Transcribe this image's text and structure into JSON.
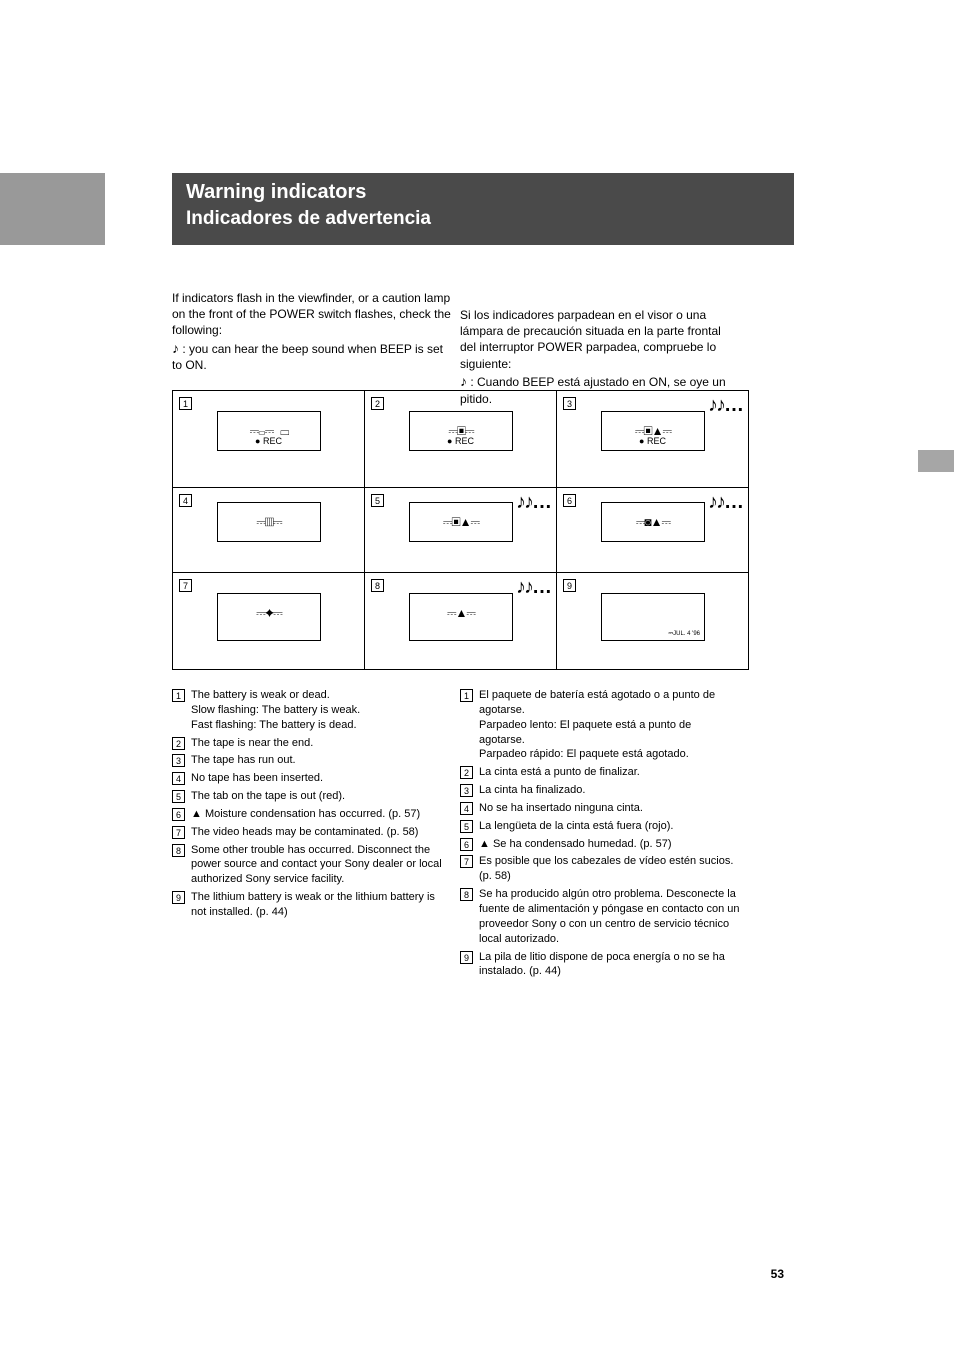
{
  "page_number": "53",
  "heading": {
    "line1": "Warning indicators",
    "line2": "Indicadores de advertencia"
  },
  "intro": {
    "en_pre": "If indicators flash in the viewfinder, or a caution lamp on the front of the POWER switch flashes, check the following:",
    "en_music": ": you can hear the beep sound when BEEP is set to ON.",
    "es_pre": "Si los indicadores parpadean en el visor o una lámpara de precaución situada en la parte frontal del interruptor POWER parpadea, compruebe lo siguiente:",
    "es_music": ": Cuando BEEP está ajustado en ON, se oye un pitido."
  },
  "cell_nums": [
    "1",
    "2",
    "3",
    "4",
    "5",
    "6",
    "7",
    "8",
    "9"
  ],
  "rec_symbol": "● REC",
  "music_glyph": "♪♪…",
  "date_stamp": "JUL. 4 '96",
  "legend_en": [
    {
      "n": "1",
      "t": "The battery is weak or dead.\nSlow flashing: The battery is weak.\nFast flashing: The battery is dead."
    },
    {
      "n": "2",
      "t": "The tape is near the end."
    },
    {
      "n": "3",
      "t": "The tape has run out."
    },
    {
      "n": "4",
      "t": "No tape has been inserted."
    },
    {
      "n": "5",
      "t": "The tab on the tape is out (red)."
    },
    {
      "n": "6",
      "t": "Moisture condensation has occurred. (p. 57)"
    },
    {
      "n": "7",
      "t": "The video heads may be contaminated. (p. 58)"
    },
    {
      "n": "8",
      "t": "Some other trouble has occurred. Disconnect the power source and contact your Sony dealer or local authorized Sony service facility."
    },
    {
      "n": "9",
      "t": "The lithium battery is weak or the lithium battery is not installed. (p. 44)"
    }
  ],
  "legend_es": [
    {
      "n": "1",
      "t": "El paquete de batería está agotado o a punto de agotarse.\nParpadeo lento: El paquete está a punto de agotarse.\nParpadeo rápido: El paquete está agotado."
    },
    {
      "n": "2",
      "t": "La cinta está a punto de finalizar."
    },
    {
      "n": "3",
      "t": "La cinta ha finalizado."
    },
    {
      "n": "4",
      "t": "No se ha insertado ninguna cinta."
    },
    {
      "n": "5",
      "t": "La lengüeta de la cinta está fuera (rojo)."
    },
    {
      "n": "6",
      "t": "Se ha condensado humedad. (p. 57)"
    },
    {
      "n": "7",
      "t": "Es posible que los cabezales de vídeo estén sucios. (p. 58)"
    },
    {
      "n": "8",
      "t": "Se ha producido algún otro problema. Desconecte la fuente de alimentación y póngase en contacto con un proveedor Sony o con un centro de servicio técnico local autorizado."
    },
    {
      "n": "9",
      "t": "La pila de litio dispone de poca energía o no se ha instalado. (p. 44)"
    }
  ],
  "eject_glyph": "▲"
}
